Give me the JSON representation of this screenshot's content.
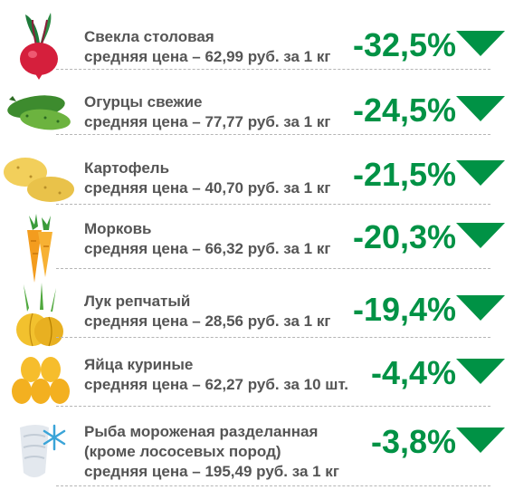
{
  "colors": {
    "accent": "#009245",
    "text": "#555555",
    "divider": "#b5b5b5"
  },
  "items": [
    {
      "icon": "beet-icon",
      "name": "Свекла столовая",
      "price": "средняя цена – 62,99 руб. за 1 кг",
      "change": "-32,5%"
    },
    {
      "icon": "cucumber-icon",
      "name": "Огурцы свежие",
      "price": "средняя цена – 77,77 руб. за 1 кг",
      "change": "-24,5%"
    },
    {
      "icon": "potato-icon",
      "name": "Картофель",
      "price": "средняя цена – 40,70 руб. за 1 кг",
      "change": "-21,5%"
    },
    {
      "icon": "carrot-icon",
      "name": "Морковь",
      "price": "средняя цена – 66,32 руб. за 1 кг",
      "change": "-20,3%"
    },
    {
      "icon": "onion-icon",
      "name": "Лук репчатый",
      "price": "средняя цена – 28,56 руб. за 1 кг",
      "change": "-19,4%"
    },
    {
      "icon": "eggs-icon",
      "name": "Яйца куриные",
      "price": "средняя цена – 62,27 руб. за 10 шт.",
      "change": "-4,4%"
    },
    {
      "icon": "frozen-fish-icon",
      "name": "Рыба мороженая разделанная",
      "name2": "(кроме лососевых пород)",
      "price": "средняя цена – 195,49 руб. за 1 кг",
      "change": "-3,8%"
    }
  ]
}
